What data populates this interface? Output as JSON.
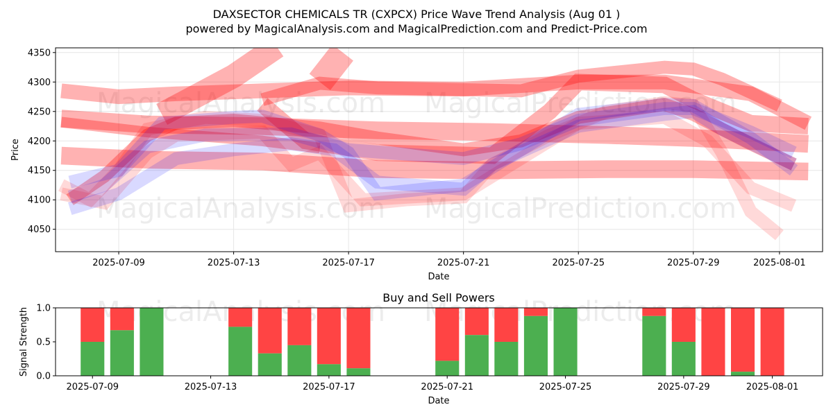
{
  "chart_data": [
    {
      "type": "area",
      "title": "DAXSECTOR CHEMICALS TR (CXPCX) Price Wave Trend Analysis (Aug 01 )",
      "subtitle": "powered by MagicalAnalysis.com and MagicalPrediction.com and Predict-Price.com",
      "xlabel": "Date",
      "ylabel": "Price",
      "xlim": [
        "2025-07-06.8",
        "2025-08-02.5"
      ],
      "ylim": [
        4012,
        4358
      ],
      "x_ticks": [
        "2025-07-09",
        "2025-07-13",
        "2025-07-17",
        "2025-07-21",
        "2025-07-25",
        "2025-07-29",
        "2025-08-01"
      ],
      "y_ticks": [
        4050,
        4100,
        4150,
        4200,
        4250,
        4300,
        4350
      ],
      "grid": true,
      "series": [
        {
          "color": "#ff0000",
          "alpha": 0.3,
          "points": [
            [
              "2025-07-07",
              4285
            ],
            [
              "2025-07-09",
              4275
            ],
            [
              "2025-07-11",
              4280
            ],
            [
              "2025-07-14",
              4285
            ],
            [
              "2025-07-17",
              4290
            ],
            [
              "2025-07-21",
              4288
            ],
            [
              "2025-07-25",
              4300
            ],
            [
              "2025-07-28",
              4300
            ],
            [
              "2025-07-31",
              4280
            ],
            [
              "2025-08-02",
              4230
            ]
          ],
          "width": 25
        },
        {
          "color": "#ff0000",
          "alpha": 0.3,
          "points": [
            [
              "2025-07-07",
              4238
            ],
            [
              "2025-07-10",
              4228
            ],
            [
              "2025-07-14",
              4225
            ],
            [
              "2025-07-18",
              4218
            ],
            [
              "2025-07-22",
              4215
            ],
            [
              "2025-07-26",
              4210
            ],
            [
              "2025-07-29",
              4205
            ],
            [
              "2025-08-02",
              4195
            ]
          ],
          "width": 30
        },
        {
          "color": "#ff0000",
          "alpha": 0.3,
          "points": [
            [
              "2025-07-07",
              4175
            ],
            [
              "2025-07-10",
              4168
            ],
            [
              "2025-07-14",
              4165
            ],
            [
              "2025-07-18",
              4152
            ],
            [
              "2025-07-22",
              4150
            ],
            [
              "2025-07-26",
              4152
            ],
            [
              "2025-07-29",
              4152
            ],
            [
              "2025-08-02",
              4148
            ]
          ],
          "width": 30
        },
        {
          "color": "#ff0000",
          "alpha": 0.3,
          "points": [
            [
              "2025-07-07",
              4232
            ],
            [
              "2025-07-10",
              4215
            ],
            [
              "2025-07-14",
              4200
            ],
            [
              "2025-07-16",
              4188
            ]
          ],
          "width": 18
        },
        {
          "color": "#ff0000",
          "alpha": 0.3,
          "points": [
            [
              "2025-07-10.5",
              4245
            ],
            [
              "2025-07-13",
              4310
            ],
            [
              "2025-07-14.5",
              4360
            ]
          ],
          "width": 40
        },
        {
          "color": "#ff0000",
          "alpha": 0.3,
          "points": [
            [
              "2025-07-16",
              4300
            ],
            [
              "2025-07-16.8",
              4350
            ]
          ],
          "width": 45
        },
        {
          "color": "#ff0000",
          "alpha": 0.3,
          "points": [
            [
              "2025-07-14",
              4270
            ],
            [
              "2025-07-16",
              4298
            ],
            [
              "2025-07-18",
              4290
            ],
            [
              "2025-07-23",
              4285
            ],
            [
              "2025-07-25",
              4310
            ],
            [
              "2025-07-28",
              4325
            ],
            [
              "2025-07-29",
              4322
            ],
            [
              "2025-07-30",
              4305
            ],
            [
              "2025-08-01",
              4260
            ]
          ],
          "width": 22
        },
        {
          "color": "#ff0000",
          "alpha": 0.3,
          "points": [
            [
              "2025-07-14",
              4262
            ],
            [
              "2025-07-15.5",
              4200
            ],
            [
              "2025-07-17",
              4188
            ],
            [
              "2025-07-18",
              4180
            ],
            [
              "2025-07-22",
              4175
            ],
            [
              "2025-07-24",
              4250
            ],
            [
              "2025-07-25",
              4300
            ],
            [
              "2025-07-28",
              4295
            ],
            [
              "2025-07-29",
              4270
            ],
            [
              "2025-07-31",
              4230
            ],
            [
              "2025-08-02",
              4225
            ]
          ],
          "width": 28
        },
        {
          "color": "#ff0000",
          "alpha": 0.15,
          "points": [
            [
              "2025-07-07",
              4125
            ],
            [
              "2025-07-08",
              4100
            ],
            [
              "2025-07-09",
              4150
            ],
            [
              "2025-07-10",
              4220
            ],
            [
              "2025-07-12",
              4240
            ],
            [
              "2025-07-14",
              4235
            ],
            [
              "2025-07-16",
              4210
            ],
            [
              "2025-07-17",
              4090
            ],
            [
              "2025-07-19",
              4100
            ],
            [
              "2025-07-21",
              4105
            ],
            [
              "2025-07-22",
              4160
            ],
            [
              "2025-07-24",
              4210
            ],
            [
              "2025-07-26",
              4250
            ],
            [
              "2025-07-28",
              4265
            ],
            [
              "2025-07-29",
              4260
            ],
            [
              "2025-07-30",
              4180
            ],
            [
              "2025-07-31",
              4080
            ],
            [
              "2025-08-01",
              4040
            ]
          ],
          "width": 22
        },
        {
          "color": "#ff0000",
          "alpha": 0.15,
          "points": [
            [
              "2025-07-07",
              4110
            ],
            [
              "2025-07-08.5",
              4095
            ],
            [
              "2025-07-10",
              4180
            ],
            [
              "2025-07-11",
              4210
            ],
            [
              "2025-07-14",
              4215
            ],
            [
              "2025-07-15",
              4160
            ],
            [
              "2025-07-16",
              4180
            ],
            [
              "2025-07-17.5",
              4100
            ],
            [
              "2025-07-21",
              4110
            ],
            [
              "2025-07-23",
              4170
            ],
            [
              "2025-07-25",
              4230
            ],
            [
              "2025-07-28",
              4240
            ],
            [
              "2025-07-29.5",
              4200
            ],
            [
              "2025-07-31",
              4120
            ],
            [
              "2025-08-01.5",
              4090
            ]
          ],
          "width": 22
        },
        {
          "color": "#ff0000",
          "alpha": 0.3,
          "points": [
            [
              "2025-07-07.3",
              4100
            ],
            [
              "2025-07-08.5",
              4140
            ],
            [
              "2025-07-10",
              4210
            ],
            [
              "2025-07-11",
              4230
            ],
            [
              "2025-07-13",
              4235
            ],
            [
              "2025-07-16",
              4222
            ],
            [
              "2025-07-18",
              4205
            ],
            [
              "2025-07-21",
              4185
            ],
            [
              "2025-07-23",
              4200
            ],
            [
              "2025-07-25",
              4240
            ],
            [
              "2025-07-28",
              4262
            ],
            [
              "2025-07-29",
              4245
            ],
            [
              "2025-07-31",
              4195
            ],
            [
              "2025-08-01.5",
              4160
            ]
          ],
          "width": 22
        },
        {
          "color": "#0000ff",
          "alpha": 0.15,
          "points": [
            [
              "2025-07-07.3",
              4085
            ],
            [
              "2025-07-09",
              4110
            ],
            [
              "2025-07-11",
              4170
            ],
            [
              "2025-07-13",
              4185
            ],
            [
              "2025-07-15",
              4195
            ],
            [
              "2025-07-16.5",
              4185
            ],
            [
              "2025-07-18",
              4130
            ],
            [
              "2025-07-21",
              4118
            ],
            [
              "2025-07-22",
              4160
            ],
            [
              "2025-07-25",
              4225
            ],
            [
              "2025-07-28",
              4245
            ],
            [
              "2025-07-29",
              4250
            ],
            [
              "2025-07-30",
              4220
            ],
            [
              "2025-08-01.5",
              4160
            ]
          ],
          "width": 22
        },
        {
          "color": "#0000ff",
          "alpha": 0.15,
          "points": [
            [
              "2025-07-07.3",
              4105
            ],
            [
              "2025-07-08.5",
              4125
            ],
            [
              "2025-07-10",
              4190
            ],
            [
              "2025-07-12",
              4210
            ],
            [
              "2025-07-15",
              4212
            ],
            [
              "2025-07-17",
              4185
            ],
            [
              "2025-07-21",
              4170
            ],
            [
              "2025-07-23",
              4195
            ],
            [
              "2025-07-25",
              4235
            ],
            [
              "2025-07-28",
              4255
            ],
            [
              "2025-07-29",
              4255
            ],
            [
              "2025-07-31",
              4215
            ],
            [
              "2025-08-01.5",
              4180
            ]
          ],
          "width": 22
        },
        {
          "color": "#0000ff",
          "alpha": 0.15,
          "points": [
            [
              "2025-07-07.3",
              4130
            ],
            [
              "2025-07-09",
              4150
            ],
            [
              "2025-07-10.5",
              4230
            ],
            [
              "2025-07-13",
              4240
            ],
            [
              "2025-07-14",
              4242
            ],
            [
              "2025-07-16",
              4210
            ],
            [
              "2025-07-17",
              4180
            ],
            [
              "2025-07-18",
              4110
            ],
            [
              "2025-07-21",
              4125
            ],
            [
              "2025-07-23",
              4185
            ],
            [
              "2025-07-25",
              4245
            ],
            [
              "2025-07-28",
              4262
            ],
            [
              "2025-07-29",
              4260
            ],
            [
              "2025-07-31",
              4205
            ],
            [
              "2025-08-01.5",
              4150
            ]
          ],
          "width": 22
        }
      ]
    },
    {
      "type": "bar",
      "title": "Buy and Sell Powers",
      "xlabel": "Date",
      "ylabel": "Signal Strength",
      "xlim": [
        "2025-07-07.75",
        "2025-08-02.7"
      ],
      "ylim": [
        0,
        1.0
      ],
      "x_ticks": [
        "2025-07-09",
        "2025-07-13",
        "2025-07-17",
        "2025-07-21",
        "2025-07-25",
        "2025-07-29",
        "2025-08-01"
      ],
      "y_ticks": [
        0.0,
        0.5,
        1.0
      ],
      "buy_color": "#4caf50",
      "sell_color": "#ff4444",
      "bars": [
        {
          "date": "2025-07-09",
          "buy": 0.5
        },
        {
          "date": "2025-07-10",
          "buy": 0.67
        },
        {
          "date": "2025-07-11",
          "buy": 1.0
        },
        {
          "date": "2025-07-14",
          "buy": 0.72
        },
        {
          "date": "2025-07-15",
          "buy": 0.33
        },
        {
          "date": "2025-07-16",
          "buy": 0.45
        },
        {
          "date": "2025-07-17",
          "buy": 0.17
        },
        {
          "date": "2025-07-18",
          "buy": 0.11
        },
        {
          "date": "2025-07-21",
          "buy": 0.22
        },
        {
          "date": "2025-07-22",
          "buy": 0.6
        },
        {
          "date": "2025-07-23",
          "buy": 0.5
        },
        {
          "date": "2025-07-24",
          "buy": 0.88
        },
        {
          "date": "2025-07-25",
          "buy": 1.0
        },
        {
          "date": "2025-07-28",
          "buy": 0.88
        },
        {
          "date": "2025-07-29",
          "buy": 0.5
        },
        {
          "date": "2025-07-30",
          "buy": 0.0
        },
        {
          "date": "2025-07-31",
          "buy": 0.06
        },
        {
          "date": "2025-08-01",
          "buy": 0.0
        }
      ]
    }
  ],
  "watermarks": [
    "MagicalAnalysis.com",
    "MagicalPrediction.com",
    "MagicalAnalysis.com",
    "MagicalPrediction.com",
    "MagicalAnalysis.com",
    "MagicalPrediction.com"
  ]
}
